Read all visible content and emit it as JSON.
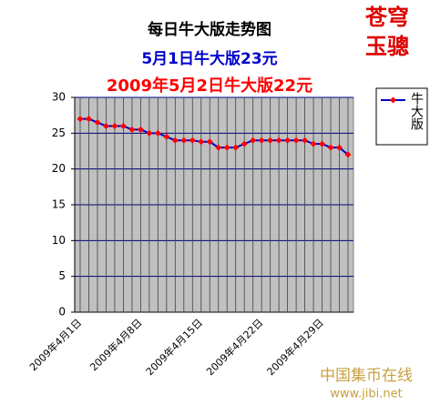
{
  "chart_data": {
    "type": "line",
    "title": "每日牛大版走势图",
    "subtitles": [
      "5月1日牛大版23元",
      "2009年5月2日牛大版22元"
    ],
    "categories": [
      "2009年4月1日",
      null,
      null,
      null,
      null,
      null,
      null,
      "2009年4月8日",
      null,
      null,
      null,
      null,
      null,
      null,
      "2009年4月15日",
      null,
      null,
      null,
      null,
      null,
      null,
      "2009年4月22日",
      null,
      null,
      null,
      null,
      null,
      null,
      "2009年4月29日",
      null,
      null,
      null
    ],
    "series": [
      {
        "name": "牛大版",
        "color": "#0000cc",
        "marker_color": "#ff0000",
        "values": [
          27,
          27,
          26.5,
          26,
          26,
          26,
          25.5,
          25.5,
          25,
          25,
          24.5,
          24,
          24,
          24,
          23.8,
          23.8,
          23,
          23,
          23,
          23.5,
          24,
          24,
          24,
          24,
          24,
          24,
          24,
          23.5,
          23.5,
          23,
          23,
          22
        ]
      }
    ],
    "ylim": [
      0,
      30
    ],
    "yticks": [
      0,
      5,
      10,
      15,
      20,
      25,
      30
    ],
    "grid": true
  },
  "logo": [
    "苍穹",
    "玉骢"
  ],
  "watermark": {
    "name": "中国集币在线",
    "url": "www.jibi.net"
  }
}
